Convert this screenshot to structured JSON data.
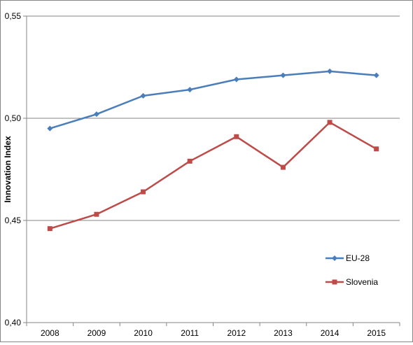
{
  "chart_data": {
    "type": "line",
    "categories": [
      "2008",
      "2009",
      "2010",
      "2011",
      "2012",
      "2013",
      "2014",
      "2015"
    ],
    "series": [
      {
        "name": "EU-28",
        "values": [
          0.495,
          0.502,
          0.511,
          0.514,
          0.519,
          0.521,
          0.523,
          0.521
        ],
        "color": "#4A7EBB",
        "marker": "diamond"
      },
      {
        "name": "Slovenia",
        "values": [
          0.446,
          0.453,
          0.464,
          0.479,
          0.491,
          0.476,
          0.498,
          0.485
        ],
        "color": "#BE4B48",
        "marker": "square"
      }
    ],
    "ylabel": "Innovation Index",
    "xlabel": "",
    "title": "",
    "ylim": [
      0.4,
      0.55
    ],
    "yticks": [
      0.4,
      0.45,
      0.5,
      0.55
    ],
    "ytick_labels": [
      "0,40",
      "0,45",
      "0,50",
      "0,55"
    ],
    "grid": "horizontal",
    "legend": "right"
  }
}
